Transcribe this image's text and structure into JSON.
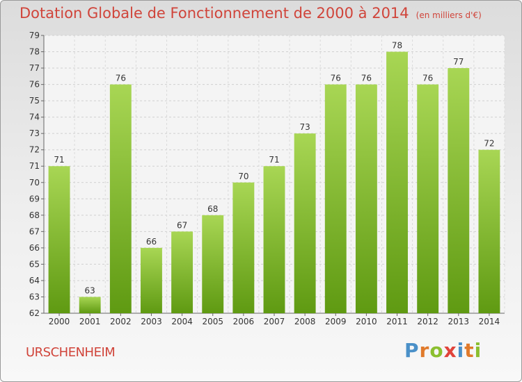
{
  "title": "Dotation Globale de Fonctionnement de 2000 à 2014",
  "subtitle": "(en milliers d'€)",
  "commune": "URSCHENHEIM",
  "brand": {
    "letters": [
      "P",
      "r",
      "o",
      "x",
      "i",
      "t",
      "i"
    ],
    "colors": [
      "#4a90c8",
      "#e07a2b",
      "#8bbf2f",
      "#e0433a",
      "#4a90c8",
      "#e07a2b",
      "#8bbf2f"
    ]
  },
  "colors": {
    "bar_top": "#a8d654",
    "bar_bottom": "#5f9a12",
    "title": "#d0443a"
  },
  "chart_data": {
    "type": "bar",
    "title": "Dotation Globale de Fonctionnement de 2000 à 2014",
    "subtitle": "(en milliers d'€)",
    "categories": [
      "2000",
      "2001",
      "2002",
      "2003",
      "2004",
      "2005",
      "2006",
      "2007",
      "2008",
      "2009",
      "2010",
      "2011",
      "2012",
      "2013",
      "2014"
    ],
    "values": [
      71,
      63,
      76,
      66,
      67,
      68,
      70,
      71,
      73,
      76,
      76,
      78,
      76,
      77,
      72
    ],
    "ylim": [
      62,
      79
    ],
    "yticks": [
      62,
      63,
      64,
      65,
      66,
      67,
      68,
      69,
      70,
      71,
      72,
      73,
      74,
      75,
      76,
      77,
      78,
      79
    ],
    "grid": true,
    "xlabel": "",
    "ylabel": ""
  }
}
